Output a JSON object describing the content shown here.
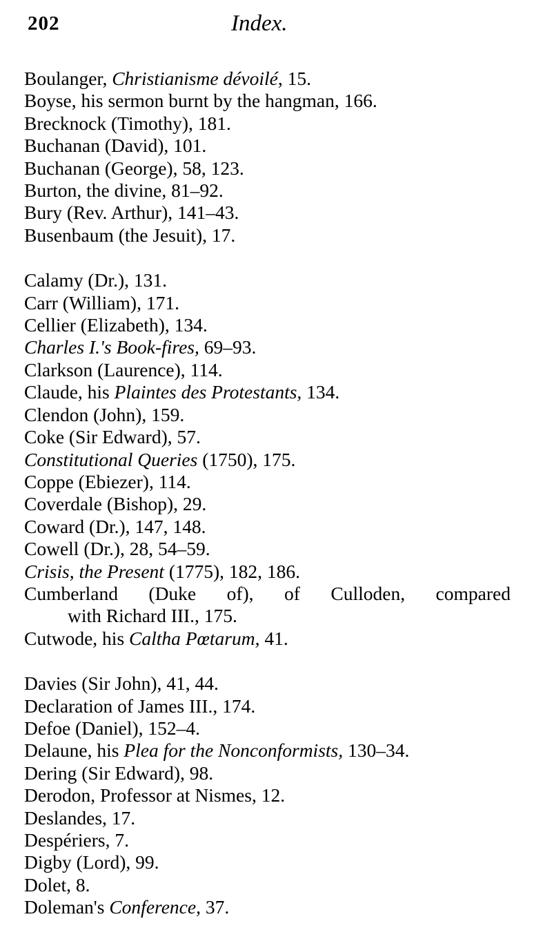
{
  "header": {
    "page_number": "202",
    "title": "Index."
  },
  "groups": [
    [
      [
        [
          "Boulanger, ",
          {
            "italic": "Christianisme dévoilé"
          },
          ", 15."
        ]
      ],
      [
        [
          "Boyse, his sermon burnt by the hangman, 166."
        ]
      ],
      [
        [
          "Brecknock (Timothy), 181."
        ]
      ],
      [
        [
          "Buchanan (David), 101."
        ]
      ],
      [
        [
          "Buchanan (George), 58, 123."
        ]
      ],
      [
        [
          "Burton, the divine, 81–92."
        ]
      ],
      [
        [
          "Bury (Rev. Arthur), 141–43."
        ]
      ],
      [
        [
          "Busenbaum (the Jesuit), 17."
        ]
      ]
    ],
    [
      [
        [
          "Calamy (Dr.), 131."
        ]
      ],
      [
        [
          "Carr (William), 171."
        ]
      ],
      [
        [
          "Cellier (Elizabeth), 134."
        ]
      ],
      [
        [
          {
            "italic": "Charles I.'s Book-fires,"
          },
          " 69–93."
        ]
      ],
      [
        [
          "Clarkson (Laurence), 114."
        ]
      ],
      [
        [
          "Claude, his ",
          {
            "italic": "Plaintes des Protestants,"
          },
          " 134."
        ]
      ],
      [
        [
          "Clendon (John), 159."
        ]
      ],
      [
        [
          "Coke (Sir Edward), 57."
        ]
      ],
      [
        [
          {
            "italic": "Constitutional Queries"
          },
          " (1750), 175."
        ]
      ],
      [
        [
          "Coppe (Ebiezer), 114."
        ]
      ],
      [
        [
          "Coverdale (Bishop), 29."
        ]
      ],
      [
        [
          "Coward (Dr.), 147, 148."
        ]
      ],
      [
        [
          "Cowell (Dr.), 28, 54–59."
        ]
      ],
      [
        [
          {
            "italic": "Crisis, the Present"
          },
          " (1775), 182, 186."
        ]
      ],
      [
        [
          "Cumberland (Duke of), of Culloden, compared"
        ],
        [
          "with Richard III., 175."
        ]
      ],
      [
        [
          "Cutwode, his ",
          {
            "italic": "Caltha Pœtarum,"
          },
          " 41."
        ]
      ]
    ],
    [
      [
        [
          "Davies (Sir John), 41, 44."
        ]
      ],
      [
        [
          "Declaration of James III., 174."
        ]
      ],
      [
        [
          "Defoe (Daniel), 152–4."
        ]
      ],
      [
        [
          "Delaune, his ",
          {
            "italic": "Plea for the Nonconformists,"
          },
          " 130–34."
        ]
      ],
      [
        [
          "Dering (Sir Edward), 98."
        ]
      ],
      [
        [
          "Derodon, Professor at Nismes, 12."
        ]
      ],
      [
        [
          "Deslandes, 17."
        ]
      ],
      [
        [
          "Despériers, 7."
        ]
      ],
      [
        [
          "Digby (Lord), 99."
        ]
      ],
      [
        [
          "Dolet, 8."
        ]
      ],
      [
        [
          "Doleman's ",
          {
            "italic": "Conference,"
          },
          " 37."
        ]
      ]
    ]
  ]
}
